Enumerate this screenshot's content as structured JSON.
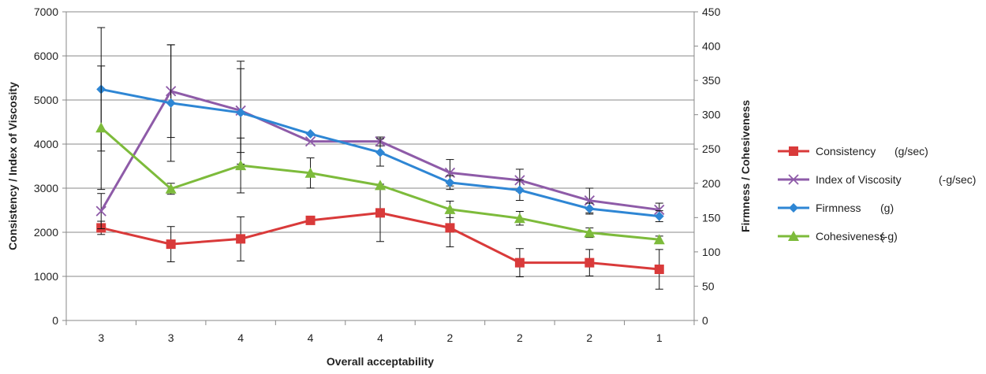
{
  "chart_data": {
    "type": "line",
    "title": "",
    "xlabel": "Overall acceptability",
    "ylabel_left": "Consistency / Index of Viscosity",
    "ylabel_right": "Firmness / Cohesiveness",
    "categories": [
      "3",
      "3",
      "4",
      "4",
      "4",
      "2",
      "2",
      "2",
      "1"
    ],
    "ylim_left": [
      0,
      7000
    ],
    "ylim_right": [
      0,
      450
    ],
    "yticks_left": [
      "0",
      "1000",
      "2000",
      "3000",
      "4000",
      "5000",
      "6000",
      "7000"
    ],
    "yticks_right": [
      "0",
      "50",
      "100",
      "150",
      "200",
      "250",
      "300",
      "350",
      "400",
      "450"
    ],
    "grid": true,
    "legend_position": "right",
    "series": [
      {
        "name": "Consistency",
        "unit": "(g/sec)",
        "axis": "left",
        "marker": "square",
        "color": "#D93A3A",
        "values": [
          2100,
          1730,
          1850,
          2270,
          2440,
          2100,
          1310,
          1310,
          1160
        ],
        "errors": [
          150,
          400,
          500,
          0,
          650,
          430,
          320,
          300,
          450
        ]
      },
      {
        "name": "Index of Viscosity",
        "unit": "(-g/sec)",
        "axis": "left",
        "marker": "x",
        "color": "#8E5BA8",
        "values": [
          2480,
          5200,
          4760,
          4060,
          4060,
          3350,
          3180,
          2720,
          2510
        ],
        "errors": [
          400,
          1050,
          950,
          0,
          100,
          300,
          250,
          280,
          150
        ]
      },
      {
        "name": "Firmness",
        "unit": "(g)",
        "axis": "right",
        "marker": "diamond",
        "color": "#2E86D4",
        "values": [
          337,
          317,
          303,
          272,
          245,
          201,
          190,
          163,
          152
        ],
        "errors": [
          90,
          85,
          75,
          0,
          20,
          10,
          15,
          8,
          8
        ]
      },
      {
        "name": "Cohesiveness",
        "unit": "(-g)",
        "axis": "right",
        "marker": "triangle",
        "color": "#7DBB3B",
        "values": [
          281,
          192,
          226,
          215,
          197,
          162,
          149,
          128,
          118
        ],
        "errors": [
          90,
          8,
          40,
          22,
          0,
          12,
          10,
          7,
          5
        ]
      }
    ]
  }
}
